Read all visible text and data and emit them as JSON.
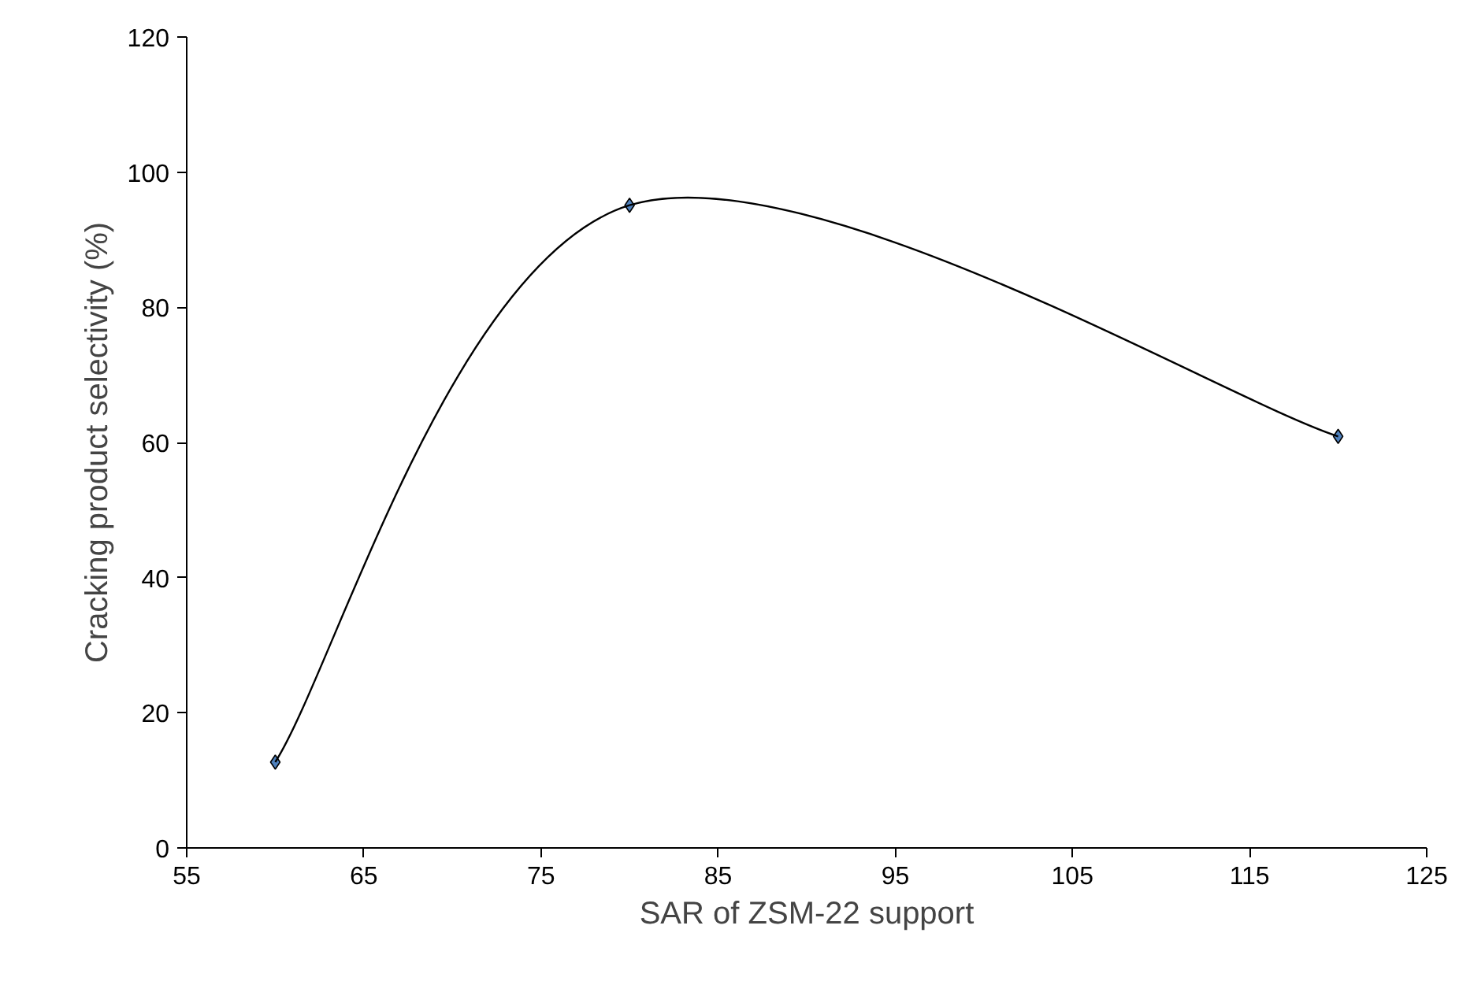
{
  "chart_data": {
    "type": "line",
    "xlabel": "SAR of ZSM-22 support",
    "ylabel": "Cracking product selectivity (%)",
    "x": [
      60,
      80,
      120
    ],
    "series": [
      {
        "color": "#000000",
        "values": [
          12.7,
          95.1,
          60.9
        ]
      }
    ],
    "xlim": [
      55,
      125
    ],
    "xticks": [
      55,
      65,
      75,
      85,
      95,
      105,
      115,
      125
    ],
    "ylim": [
      0,
      120
    ],
    "yticks": [
      0,
      20,
      40,
      60,
      80,
      100,
      120
    ],
    "marker": "diamond",
    "line_style": "solid",
    "grid": false
  }
}
